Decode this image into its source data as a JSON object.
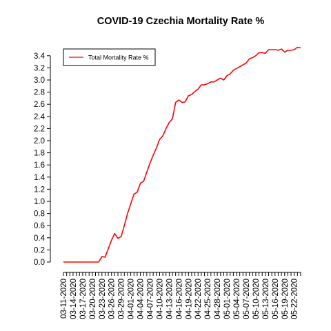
{
  "chart_data": {
    "type": "line",
    "title": "COVID-19 Czechia Mortality Rate %",
    "xlabel": "",
    "ylabel": "",
    "ylim": [
      0,
      3.5
    ],
    "yticks": [
      0.0,
      0.2,
      0.4,
      0.6,
      0.8,
      1.0,
      1.2,
      1.4,
      1.6,
      1.8,
      2.0,
      2.2,
      2.4,
      2.6,
      2.8,
      3.0,
      3.2,
      3.4
    ],
    "ytick_labels": [
      "0.0",
      "0.2",
      "0.4",
      "0.6",
      "0.8",
      "1.0",
      "1.2",
      "1.4",
      "1.6",
      "1.8",
      "2.0",
      "2.2",
      "2.4",
      "2.6",
      "2.8",
      "3.0",
      "3.2",
      "3.4"
    ],
    "xtick_labels": [
      "03-11-2020",
      "03-14-2020",
      "03-17-2020",
      "03-20-2020",
      "03-23-2020",
      "03-26-2020",
      "03-29-2020",
      "04-01-2020",
      "04-04-2020",
      "04-07-2020",
      "04-10-2020",
      "04-13-2020",
      "04-16-2020",
      "04-19-2020",
      "04-22-2020",
      "04-25-2020",
      "04-28-2020",
      "05-01-2020",
      "05-04-2020",
      "05-07-2020",
      "05-10-2020",
      "05-13-2020",
      "05-16-2020",
      "05-19-2020",
      "05-22-2020"
    ],
    "grid": false,
    "legend": {
      "position": "top-left",
      "entries": [
        "Total Mortality Rate %"
      ]
    },
    "series": [
      {
        "name": "Total Mortality Rate %",
        "color": "#ff0000",
        "x": [
          "03-11-2020",
          "03-12-2020",
          "03-13-2020",
          "03-14-2020",
          "03-15-2020",
          "03-16-2020",
          "03-17-2020",
          "03-18-2020",
          "03-19-2020",
          "03-20-2020",
          "03-21-2020",
          "03-22-2020",
          "03-23-2020",
          "03-24-2020",
          "03-25-2020",
          "03-26-2020",
          "03-27-2020",
          "03-28-2020",
          "03-29-2020",
          "03-30-2020",
          "03-31-2020",
          "04-01-2020",
          "04-02-2020",
          "04-03-2020",
          "04-04-2020",
          "04-05-2020",
          "04-06-2020",
          "04-07-2020",
          "04-08-2020",
          "04-09-2020",
          "04-10-2020",
          "04-11-2020",
          "04-12-2020",
          "04-13-2020",
          "04-14-2020",
          "04-15-2020",
          "04-16-2020",
          "04-17-2020",
          "04-18-2020",
          "04-19-2020",
          "04-20-2020",
          "04-21-2020",
          "04-22-2020",
          "04-23-2020",
          "04-24-2020",
          "04-25-2020",
          "04-26-2020",
          "04-27-2020",
          "04-28-2020",
          "04-29-2020",
          "04-30-2020",
          "05-01-2020",
          "05-02-2020",
          "05-03-2020",
          "05-04-2020",
          "05-05-2020",
          "05-06-2020",
          "05-07-2020",
          "05-08-2020",
          "05-09-2020",
          "05-10-2020",
          "05-11-2020",
          "05-12-2020",
          "05-13-2020",
          "05-14-2020",
          "05-15-2020",
          "05-16-2020",
          "05-17-2020",
          "05-18-2020",
          "05-19-2020",
          "05-20-2020",
          "05-21-2020",
          "05-22-2020",
          "05-23-2020",
          "05-24-2020"
        ],
        "values": [
          0.0,
          0.0,
          0.0,
          0.0,
          0.0,
          0.0,
          0.0,
          0.0,
          0.0,
          0.0,
          0.0,
          0.0,
          0.09,
          0.08,
          0.22,
          0.36,
          0.47,
          0.39,
          0.42,
          0.6,
          0.8,
          0.96,
          1.12,
          1.15,
          1.3,
          1.33,
          1.48,
          1.63,
          1.76,
          1.88,
          2.02,
          2.08,
          2.2,
          2.3,
          2.36,
          2.63,
          2.67,
          2.63,
          2.64,
          2.74,
          2.76,
          2.81,
          2.85,
          2.92,
          2.92,
          2.94,
          2.97,
          2.97,
          3.0,
          3.03,
          3.0,
          3.07,
          3.1,
          3.16,
          3.19,
          3.22,
          3.25,
          3.28,
          3.35,
          3.37,
          3.4,
          3.45,
          3.45,
          3.44,
          3.5,
          3.5,
          3.5,
          3.49,
          3.51,
          3.46,
          3.49,
          3.49,
          3.5,
          3.54,
          3.53
        ]
      }
    ]
  }
}
